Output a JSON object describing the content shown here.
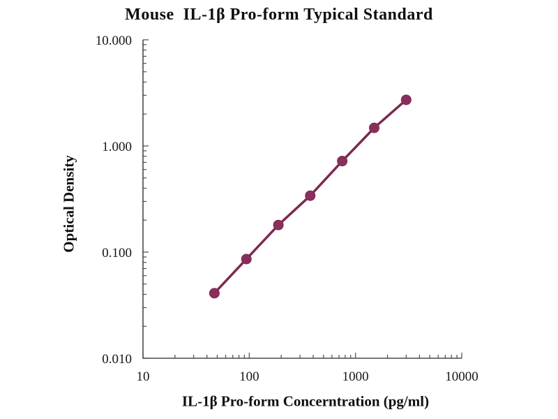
{
  "page": {
    "background": "#ffffff"
  },
  "chart_data": {
    "type": "line",
    "title": "Mouse  IL-1β Pro-form Typical Standard",
    "xlabel": "IL-1β Pro-form Concerntration (pg/ml)",
    "ylabel": "Optical Density",
    "x_scale": "log",
    "y_scale": "log",
    "xlim": [
      10,
      10000
    ],
    "ylim": [
      0.01,
      10
    ],
    "x_ticks": [
      10,
      100,
      1000,
      10000
    ],
    "x_tick_labels": [
      "10",
      "100",
      "1000",
      "10000"
    ],
    "y_ticks": [
      0.01,
      0.1,
      1,
      10
    ],
    "y_tick_labels": [
      "0.010",
      "0.100",
      "1.000",
      "10.000"
    ],
    "grid": false,
    "legend": "none",
    "series": [
      {
        "name": "Typical Standard",
        "x": [
          47,
          94,
          188,
          375,
          750,
          1500,
          3000
        ],
        "y": [
          0.041,
          0.086,
          0.18,
          0.34,
          0.72,
          1.48,
          2.72
        ],
        "color": "#8a2f5c",
        "line_color": "#7d2853",
        "marker": "circle"
      }
    ],
    "axis_color": "#4a4a4a",
    "text_color": "#161616"
  }
}
